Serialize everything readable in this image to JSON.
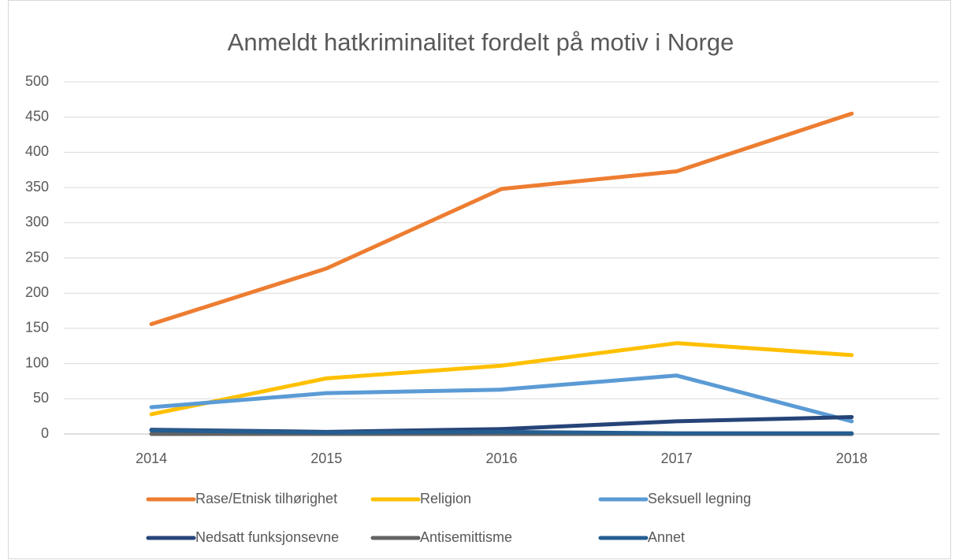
{
  "chart_data": {
    "type": "line",
    "title": "Anmeldt hatkriminalitet fordelt på motiv i Norge",
    "categories": [
      "2014",
      "2015",
      "2016",
      "2017",
      "2018"
    ],
    "series": [
      {
        "name": "Rase/Etnisk tilhørighet",
        "color": "#ed7d31",
        "values": [
          156,
          235,
          348,
          373,
          455
        ]
      },
      {
        "name": "Religion",
        "color": "#ffc000",
        "values": [
          28,
          79,
          97,
          129,
          112
        ]
      },
      {
        "name": "Seksuell legning",
        "color": "#5b9bd5",
        "values": [
          38,
          58,
          63,
          83,
          18
        ]
      },
      {
        "name": "Nedsatt funksjonsevne",
        "color": "#264478",
        "values": [
          6,
          3,
          7,
          18,
          24
        ]
      },
      {
        "name": "Antisemittisme",
        "color": "#636363",
        "values": [
          0,
          0,
          0,
          0,
          0
        ]
      },
      {
        "name": "Annet",
        "color": "#255e91",
        "values": [
          5,
          2,
          3,
          1,
          1
        ]
      }
    ],
    "ylim": [
      0,
      500
    ],
    "yticks": [
      0,
      50,
      100,
      150,
      200,
      250,
      300,
      350,
      400,
      450,
      500
    ],
    "grid": true
  }
}
